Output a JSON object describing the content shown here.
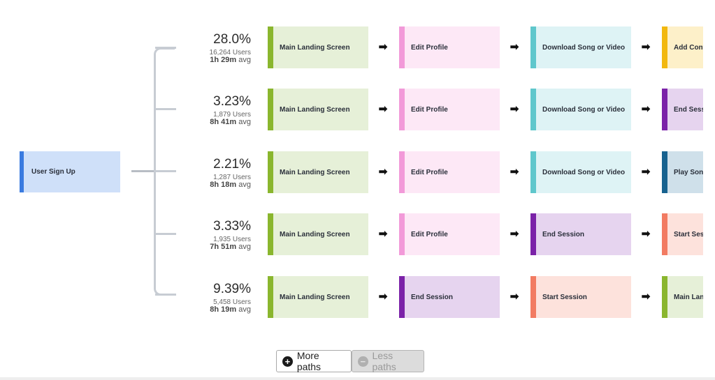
{
  "root_node": {
    "label": "User Sign Up",
    "accent": "#3a7be0",
    "bg": "#cfe0f9"
  },
  "paths": [
    {
      "percent": "28.0%",
      "users": "16,264 Users",
      "avg": "1h 29m",
      "avg_suffix": "avg",
      "steps": [
        {
          "label": "Main Landing Screen",
          "accent": "#8ab62e",
          "bg": "#e6f0d8"
        },
        {
          "label": "Edit Profile",
          "accent": "#f29ad9",
          "bg": "#fde8f6"
        },
        {
          "label": "Download Song or Video",
          "accent": "#5fc7cc",
          "bg": "#def3f5"
        },
        {
          "label": "Add Content",
          "accent": "#f2b80f",
          "bg": "#fdf0c9"
        }
      ]
    },
    {
      "percent": "3.23%",
      "users": "1,879 Users",
      "avg": "8h 41m",
      "avg_suffix": "avg",
      "steps": [
        {
          "label": "Main Landing Screen",
          "accent": "#8ab62e",
          "bg": "#e6f0d8"
        },
        {
          "label": "Edit Profile",
          "accent": "#f29ad9",
          "bg": "#fde8f6"
        },
        {
          "label": "Download Song or Video",
          "accent": "#5fc7cc",
          "bg": "#def3f5"
        },
        {
          "label": "End Session",
          "accent": "#7b22a8",
          "bg": "#e6d4ef"
        }
      ]
    },
    {
      "percent": "2.21%",
      "users": "1,287 Users",
      "avg": "8h 18m",
      "avg_suffix": "avg",
      "steps": [
        {
          "label": "Main Landing Screen",
          "accent": "#8ab62e",
          "bg": "#e6f0d8"
        },
        {
          "label": "Edit Profile",
          "accent": "#f29ad9",
          "bg": "#fde8f6"
        },
        {
          "label": "Download Song or Video",
          "accent": "#5fc7cc",
          "bg": "#def3f5"
        },
        {
          "label": "Play Song",
          "accent": "#17628f",
          "bg": "#cfe0ea"
        }
      ]
    },
    {
      "percent": "3.33%",
      "users": "1,935 Users",
      "avg": "7h 51m",
      "avg_suffix": "avg",
      "steps": [
        {
          "label": "Main Landing Screen",
          "accent": "#8ab62e",
          "bg": "#e6f0d8"
        },
        {
          "label": "Edit Profile",
          "accent": "#f29ad9",
          "bg": "#fde8f6"
        },
        {
          "label": "End Session",
          "accent": "#7b22a8",
          "bg": "#e6d4ef"
        },
        {
          "label": "Start Session",
          "accent": "#f27b62",
          "bg": "#fde2dc"
        }
      ]
    },
    {
      "percent": "9.39%",
      "users": "5,458 Users",
      "avg": "8h 19m",
      "avg_suffix": "avg",
      "steps": [
        {
          "label": "Main Landing Screen",
          "accent": "#8ab62e",
          "bg": "#e6f0d8"
        },
        {
          "label": "End Session",
          "accent": "#7b22a8",
          "bg": "#e6d4ef"
        },
        {
          "label": "Start Session",
          "accent": "#f27b62",
          "bg": "#fde2dc"
        },
        {
          "label": "Main Landing Screen",
          "accent": "#8ab62e",
          "bg": "#e6f0d8"
        }
      ]
    }
  ],
  "arrow_glyph": "➡",
  "controls": {
    "more_label": "More paths",
    "more_icon": "plus-circle-icon",
    "less_label": "Less paths",
    "less_icon": "minus-circle-icon",
    "less_disabled": true
  }
}
